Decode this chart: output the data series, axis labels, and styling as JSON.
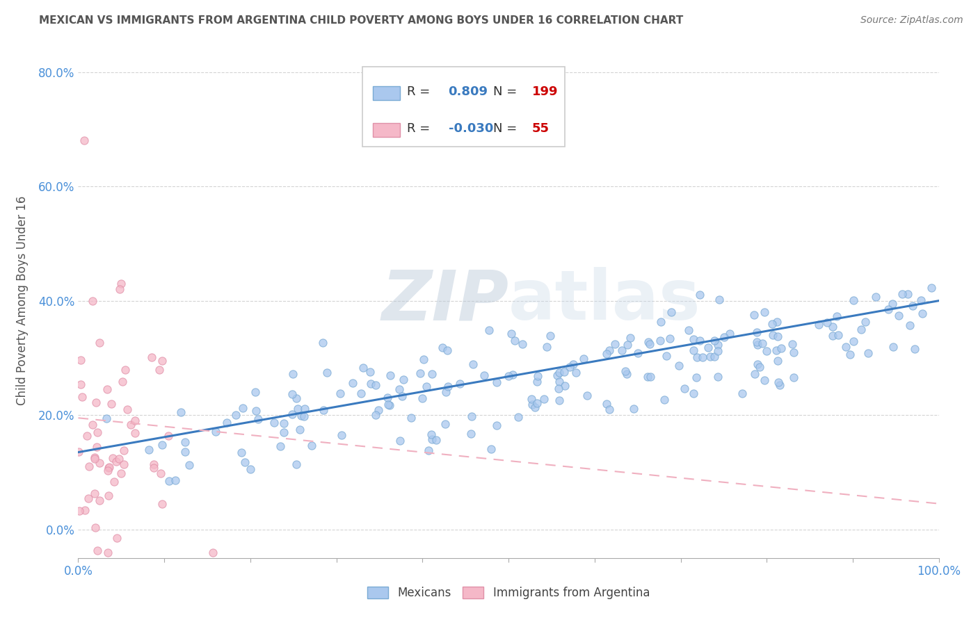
{
  "title": "MEXICAN VS IMMIGRANTS FROM ARGENTINA CHILD POVERTY AMONG BOYS UNDER 16 CORRELATION CHART",
  "source": "Source: ZipAtlas.com",
  "ylabel": "Child Poverty Among Boys Under 16",
  "xlim": [
    0.0,
    1.0
  ],
  "ylim": [
    -0.05,
    0.85
  ],
  "mexican_R": 0.809,
  "mexican_N": 199,
  "argentina_R": -0.03,
  "argentina_N": 55,
  "mexican_color": "#aac8ee",
  "argentina_color": "#f5b8c8",
  "mexican_edge_color": "#7aaad4",
  "argentina_edge_color": "#e090a8",
  "mexican_line_color": "#3a7abf",
  "argentina_line_color": "#f0b0c0",
  "watermark_zip": "#b8c8d8",
  "watermark_atlas": "#c8d8e8",
  "background_color": "#ffffff",
  "grid_color": "#d0d0d0",
  "title_color": "#555555",
  "axis_tick_color": "#4a90d9",
  "ylabel_color": "#555555",
  "legend_text_color": "#333333",
  "legend_R_value_color": "#3a7abf",
  "legend_N_value_color": "#cc0000",
  "legend_border_color": "#cccccc",
  "source_color": "#777777"
}
